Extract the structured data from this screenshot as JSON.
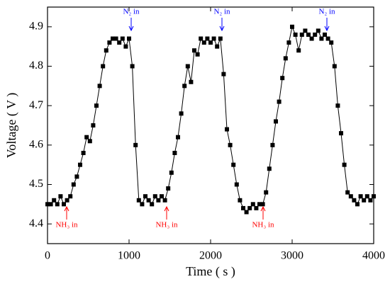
{
  "chart_data": {
    "type": "line",
    "xlabel": "Time ( s )",
    "ylabel": "Voltage ( V )",
    "xlim": [
      0,
      4000
    ],
    "xticks": [
      0,
      1000,
      2000,
      3000,
      4000
    ],
    "ylim": [
      4.35,
      4.95
    ],
    "yticks": [
      4.4,
      4.5,
      4.6,
      4.7,
      4.8,
      4.9
    ],
    "x": [
      0,
      40,
      80,
      120,
      160,
      200,
      240,
      280,
      320,
      360,
      400,
      440,
      480,
      520,
      560,
      600,
      640,
      680,
      720,
      760,
      800,
      840,
      880,
      920,
      960,
      1000,
      1040,
      1080,
      1120,
      1160,
      1200,
      1240,
      1280,
      1320,
      1360,
      1400,
      1440,
      1480,
      1520,
      1560,
      1600,
      1640,
      1680,
      1720,
      1760,
      1800,
      1840,
      1880,
      1920,
      1960,
      2000,
      2040,
      2080,
      2120,
      2160,
      2200,
      2240,
      2280,
      2320,
      2360,
      2400,
      2440,
      2480,
      2520,
      2560,
      2600,
      2640,
      2680,
      2720,
      2760,
      2800,
      2840,
      2880,
      2920,
      2960,
      3000,
      3040,
      3080,
      3120,
      3160,
      3200,
      3240,
      3280,
      3320,
      3360,
      3400,
      3440,
      3480,
      3520,
      3560,
      3600,
      3640,
      3680,
      3720,
      3760,
      3800,
      3840,
      3880,
      3920,
      3960,
      4000
    ],
    "series": [
      {
        "color": "#000000",
        "values": [
          4.45,
          4.45,
          4.46,
          4.45,
          4.47,
          4.45,
          4.46,
          4.47,
          4.5,
          4.52,
          4.55,
          4.58,
          4.62,
          4.61,
          4.65,
          4.7,
          4.75,
          4.8,
          4.84,
          4.86,
          4.87,
          4.87,
          4.86,
          4.87,
          4.85,
          4.87,
          4.8,
          4.6,
          4.46,
          4.45,
          4.47,
          4.46,
          4.45,
          4.47,
          4.46,
          4.47,
          4.46,
          4.49,
          4.53,
          4.58,
          4.62,
          4.68,
          4.75,
          4.8,
          4.76,
          4.84,
          4.83,
          4.87,
          4.86,
          4.87,
          4.86,
          4.87,
          4.85,
          4.87,
          4.78,
          4.64,
          4.6,
          4.55,
          4.5,
          4.46,
          4.44,
          4.43,
          4.44,
          4.45,
          4.44,
          4.45,
          4.45,
          4.48,
          4.54,
          4.6,
          4.66,
          4.71,
          4.77,
          4.82,
          4.86,
          4.9,
          4.88,
          4.84,
          4.88,
          4.89,
          4.88,
          4.87,
          4.88,
          4.89,
          4.87,
          4.88,
          4.87,
          4.86,
          4.8,
          4.7,
          4.63,
          4.55,
          4.48,
          4.47,
          4.46,
          4.45,
          4.47,
          4.46,
          4.47,
          4.46,
          4.47
        ]
      }
    ],
    "annotations": [
      {
        "text": "N₂ in",
        "color": "#0000ff"
      },
      {
        "text": "N₂ in",
        "color": "#0000ff"
      },
      {
        "text": "N₂ in",
        "color": "#0000ff"
      },
      {
        "text": "NH₃ in",
        "color": "#ff0000"
      },
      {
        "text": "NH₃ in",
        "color": "#ff0000"
      },
      {
        "text": "NH₃ in",
        "color": "#ff0000"
      }
    ]
  }
}
